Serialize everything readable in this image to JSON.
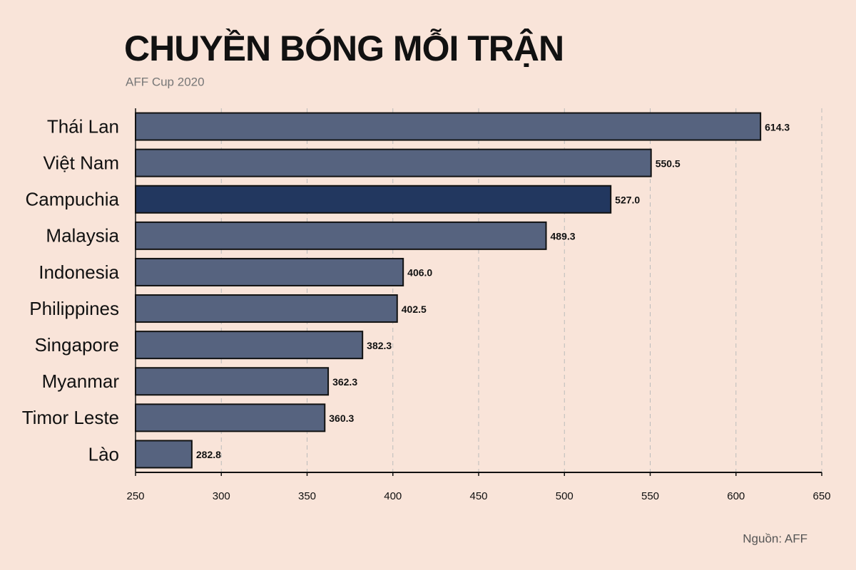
{
  "chart_data": {
    "type": "bar",
    "orientation": "horizontal",
    "title": "CHUYỀN BÓNG MỖI TRẬN",
    "subtitle": "AFF Cup 2020",
    "source": "Nguồn: AFF",
    "categories": [
      "Thái Lan",
      "Việt Nam",
      "Campuchia",
      "Malaysia",
      "Indonesia",
      "Philippines",
      "Singapore",
      "Myanmar",
      "Timor Leste",
      "Lào"
    ],
    "values": [
      614.3,
      550.5,
      527,
      489.3,
      406,
      402.5,
      382.3,
      362.3,
      360.3,
      282.8
    ],
    "value_labels": [
      "614.3",
      "550.5",
      "527.0",
      "489.3",
      "406.0",
      "402.5",
      "382.3",
      "362.3",
      "360.3",
      "282.8"
    ],
    "colors": [
      "#56637f",
      "#56637f",
      "#22375f",
      "#56637f",
      "#56637f",
      "#56637f",
      "#56637f",
      "#56637f",
      "#56637f",
      "#56637f"
    ],
    "xlim": [
      250,
      650
    ],
    "xticks": [
      250,
      300,
      350,
      400,
      450,
      500,
      550,
      600,
      650
    ],
    "grid": true
  }
}
